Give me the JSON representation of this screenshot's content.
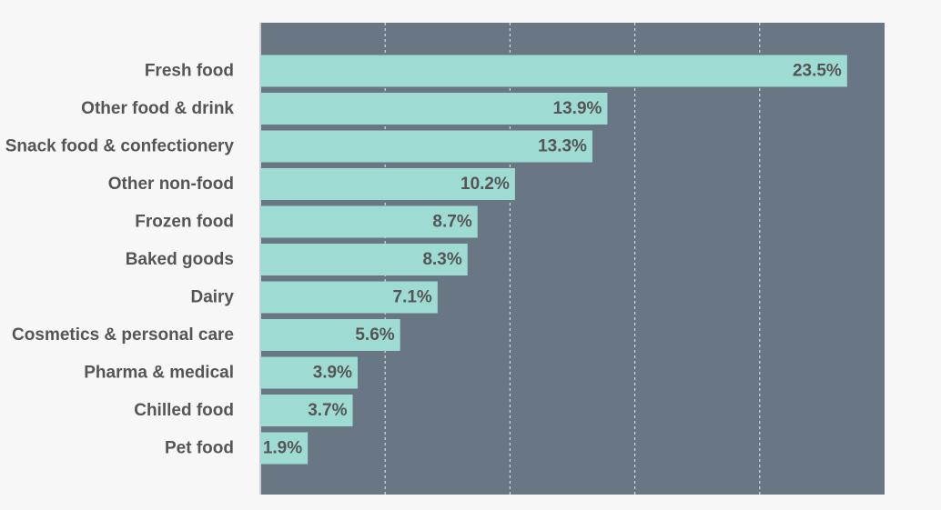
{
  "chart_data": {
    "type": "bar",
    "orientation": "horizontal",
    "categories": [
      "Fresh food",
      "Other food & drink",
      "Snack food & confectionery",
      "Other non-food",
      "Frozen food",
      "Baked goods",
      "Dairy",
      "Cosmetics & personal care",
      "Pharma & medical",
      "Chilled food",
      "Pet food"
    ],
    "values": [
      23.5,
      13.9,
      13.3,
      10.2,
      8.7,
      8.3,
      7.1,
      5.6,
      3.9,
      3.7,
      1.9
    ],
    "value_labels": [
      "23.5%",
      "13.9%",
      "13.3%",
      "10.2%",
      "8.7%",
      "8.3%",
      "7.1%",
      "5.6%",
      "3.9%",
      "3.7%",
      "1.9%"
    ],
    "xlim": [
      0,
      25
    ],
    "x_gridlines": [
      5,
      10,
      15,
      20
    ],
    "grid": true,
    "legend": "none",
    "title": "",
    "xlabel": "",
    "ylabel": "",
    "colors": {
      "bar": "#9edbd3",
      "plot_background": "#697785",
      "gridline": "#ffffff",
      "label_text": "#555555",
      "page_background": "#f7f7f7"
    }
  }
}
